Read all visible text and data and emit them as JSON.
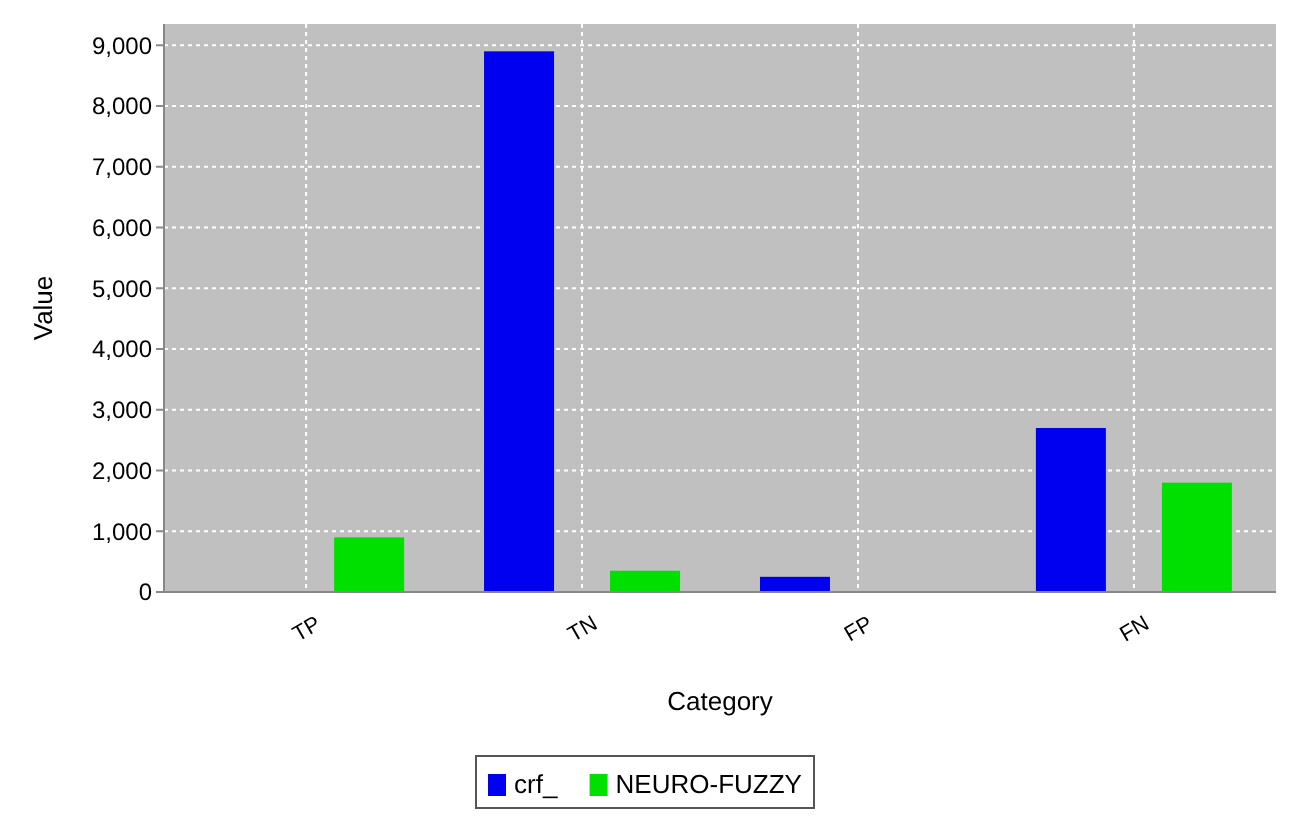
{
  "chart_data": {
    "type": "bar",
    "xlabel": "Category",
    "ylabel": "Value",
    "categories": [
      "TP",
      "TN",
      "FP",
      "FN"
    ],
    "series": [
      {
        "name": "crf_",
        "color": "#0000f0",
        "values": [
          0,
          8900,
          250,
          2700
        ]
      },
      {
        "name": "NEURO-FUZZY",
        "color": "#00e000",
        "values": [
          900,
          350,
          0,
          1800
        ]
      }
    ],
    "ylim": [
      0,
      9350
    ],
    "yticks": [
      {
        "value": 0,
        "label": "0"
      },
      {
        "value": 1000,
        "label": "1,000"
      },
      {
        "value": 2000,
        "label": "2,000"
      },
      {
        "value": 3000,
        "label": "3,000"
      },
      {
        "value": 4000,
        "label": "4,000"
      },
      {
        "value": 5000,
        "label": "5,000"
      },
      {
        "value": 6000,
        "label": "6,000"
      },
      {
        "value": 7000,
        "label": "7,000"
      },
      {
        "value": 8000,
        "label": "8,000"
      },
      {
        "value": 9000,
        "label": "9,000"
      }
    ],
    "grid": true,
    "legend": "bottom"
  }
}
